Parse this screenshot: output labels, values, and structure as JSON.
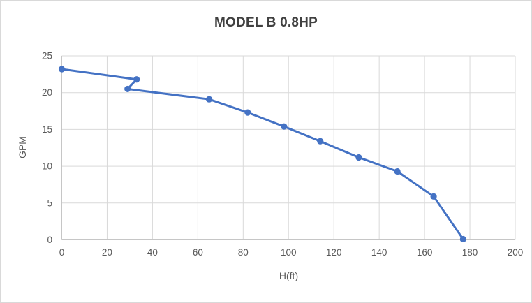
{
  "chart_data": {
    "type": "line",
    "title": "MODEL B 0.8HP",
    "xlabel": "H(ft)",
    "ylabel": "GPM",
    "xlim": [
      0,
      200
    ],
    "ylim": [
      0,
      25
    ],
    "xticks": [
      0,
      20,
      40,
      60,
      80,
      100,
      120,
      140,
      160,
      180,
      200
    ],
    "yticks": [
      0,
      5,
      10,
      15,
      20,
      25
    ],
    "grid": true,
    "legend": false,
    "series": [
      {
        "name": "MODEL B 0.8HP",
        "marker": "circle",
        "color": "#4472C4",
        "points": [
          [
            0,
            23.2
          ],
          [
            33,
            21.8
          ],
          [
            29,
            20.5
          ],
          [
            65,
            19.1
          ],
          [
            82,
            17.3
          ],
          [
            98,
            15.4
          ],
          [
            114,
            13.4
          ],
          [
            131,
            11.2
          ],
          [
            148,
            9.3
          ],
          [
            164,
            5.9
          ],
          [
            177,
            0.1
          ]
        ]
      }
    ],
    "colors": {
      "series": "#4472C4",
      "gridline": "#D9D9D9",
      "axis_line": "#C6C6C6",
      "tick_label": "#595959",
      "axis_title": "#595959",
      "title": "#404040",
      "background": "#FFFFFF",
      "border": "#D9D9D9"
    }
  }
}
